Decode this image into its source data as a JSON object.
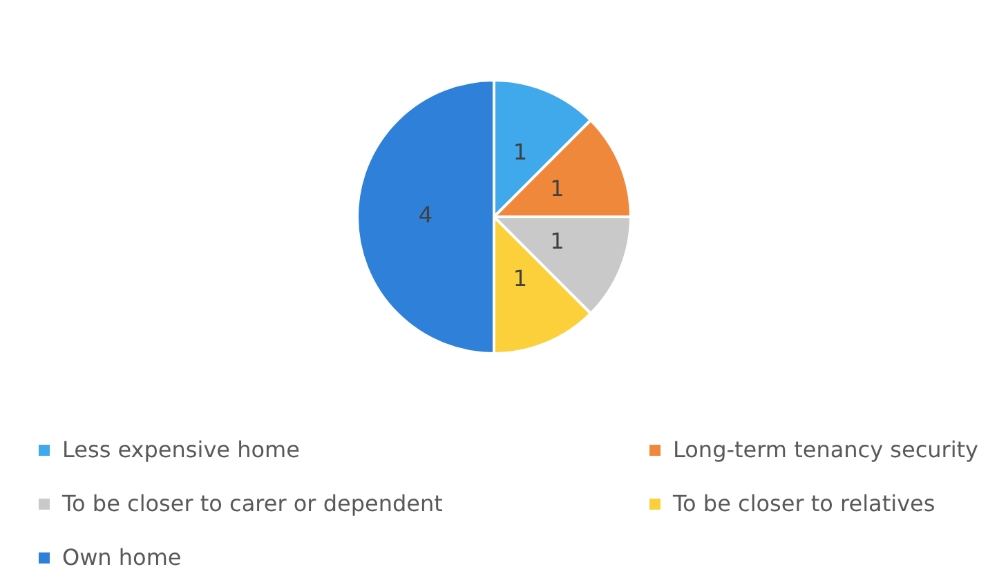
{
  "chart_data": {
    "type": "pie",
    "categories": [
      "Less expensive home",
      "Long-term tenancy security",
      "To be closer to carer or dependent",
      "To be closer to relatives",
      "Own home"
    ],
    "values": [
      1,
      1,
      1,
      1,
      4
    ],
    "colors": [
      "#3fa9ec",
      "#f0883c",
      "#c9c9c9",
      "#fcd03a",
      "#2f80d8"
    ],
    "data_labels": true,
    "legend": "bottom"
  }
}
